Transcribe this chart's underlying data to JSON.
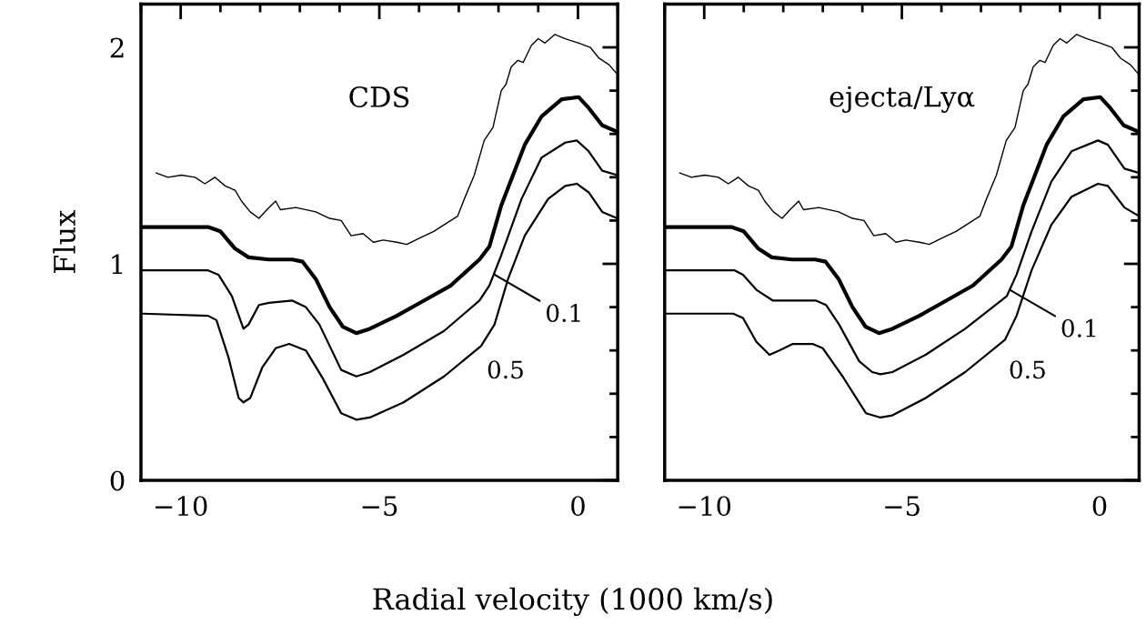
{
  "chart_data": [
    {
      "type": "line",
      "title": "CDS",
      "xlabel": "Radial velocity (1000 km/s)",
      "ylabel": "Flux",
      "xlim": [
        -11,
        1
      ],
      "xticks": [
        -10,
        -5,
        0
      ],
      "ylim": [
        0,
        2.2
      ],
      "yticks": [
        0,
        1,
        2
      ],
      "grid": false,
      "series": [
        {
          "color": "#000000",
          "x": [
            -10.62,
            -10.32,
            -9.98,
            -9.64,
            -9.39,
            -9.14,
            -8.88,
            -8.63,
            -8.47,
            -8.25,
            -8.03,
            -7.83,
            -7.61,
            -7.49,
            -7.1,
            -6.6,
            -6.25,
            -5.96,
            -5.71,
            -5.41,
            -5.15,
            -4.9,
            -4.56,
            -4.31,
            -3.97,
            -3.63,
            -3.29,
            -3.03,
            -2.86,
            -2.61,
            -2.36,
            -2.14,
            -1.93,
            -1.81,
            -1.68,
            -1.51,
            -1.38,
            -1.17,
            -1.0,
            -0.83,
            -0.58,
            -0.32,
            0.02,
            0.31,
            0.53,
            0.78,
            0.97
          ],
          "values": [
            1.42,
            1.4,
            1.41,
            1.4,
            1.37,
            1.4,
            1.36,
            1.34,
            1.29,
            1.24,
            1.21,
            1.25,
            1.29,
            1.25,
            1.26,
            1.24,
            1.21,
            1.2,
            1.13,
            1.14,
            1.1,
            1.11,
            1.1,
            1.09,
            1.12,
            1.15,
            1.19,
            1.22,
            1.3,
            1.41,
            1.57,
            1.63,
            1.8,
            1.83,
            1.91,
            1.94,
            1.93,
            2.01,
            2.04,
            2.02,
            2.06,
            2.04,
            2.02,
            2.0,
            1.95,
            1.92,
            1.88
          ]
        },
        {
          "color": "#000000",
          "x": [
            -10.96,
            -9.31,
            -9.0,
            -8.63,
            -8.29,
            -7.78,
            -7.19,
            -6.93,
            -6.6,
            -6.25,
            -5.92,
            -5.58,
            -5.24,
            -4.56,
            -3.88,
            -3.2,
            -2.48,
            -2.23,
            -1.93,
            -1.34,
            -0.92,
            -0.41,
            0.02,
            0.27,
            0.61,
            0.99
          ],
          "values": [
            1.17,
            1.17,
            1.15,
            1.07,
            1.03,
            1.02,
            1.02,
            1.01,
            0.93,
            0.8,
            0.71,
            0.68,
            0.7,
            0.76,
            0.83,
            0.9,
            1.02,
            1.08,
            1.27,
            1.55,
            1.68,
            1.76,
            1.77,
            1.72,
            1.64,
            1.61
          ]
        },
        {
          "color": "#000000",
          "x": [
            -10.96,
            -9.31,
            -9.05,
            -8.71,
            -8.42,
            -8.29,
            -8.03,
            -7.78,
            -7.19,
            -6.85,
            -6.51,
            -5.96,
            -5.58,
            -5.24,
            -4.39,
            -3.37,
            -2.48,
            -2.23,
            -1.93,
            -1.42,
            -0.92,
            -0.32,
            -0.03,
            0.27,
            0.61,
            0.99
          ],
          "values": [
            0.97,
            0.97,
            0.95,
            0.85,
            0.7,
            0.72,
            0.81,
            0.82,
            0.83,
            0.8,
            0.72,
            0.51,
            0.48,
            0.5,
            0.58,
            0.69,
            0.83,
            0.9,
            1.04,
            1.3,
            1.49,
            1.56,
            1.57,
            1.52,
            1.43,
            1.41
          ]
        },
        {
          "color": "#000000",
          "x": [
            -10.96,
            -9.31,
            -9.1,
            -8.8,
            -8.54,
            -8.42,
            -8.25,
            -7.95,
            -7.61,
            -7.27,
            -6.85,
            -6.42,
            -5.96,
            -5.58,
            -5.24,
            -4.39,
            -3.37,
            -2.44,
            -2.1,
            -1.76,
            -1.34,
            -0.75,
            -0.32,
            -0.03,
            0.27,
            0.61,
            0.99
          ],
          "values": [
            0.77,
            0.76,
            0.74,
            0.57,
            0.38,
            0.36,
            0.38,
            0.52,
            0.61,
            0.63,
            0.6,
            0.47,
            0.31,
            0.28,
            0.29,
            0.36,
            0.48,
            0.62,
            0.72,
            0.93,
            1.13,
            1.3,
            1.36,
            1.37,
            1.33,
            1.24,
            1.21
          ]
        }
      ],
      "annotations": [
        {
          "text": "0.1",
          "x": -2.1,
          "y": 0.95
        },
        "0.5"
      ]
    },
    {
      "type": "line",
      "title": "ejecta/Lyα",
      "xlim": [
        -11,
        1
      ],
      "xticks": [
        -10,
        -5,
        0
      ],
      "ylim": [
        0,
        2.2
      ],
      "yticks": [
        0,
        1,
        2
      ],
      "tick_labels": "x",
      "grid": false,
      "series": [
        {
          "color": "#000000",
          "x": [
            -10.62,
            -10.32,
            -9.98,
            -9.64,
            -9.39,
            -9.14,
            -8.88,
            -8.63,
            -8.47,
            -8.25,
            -8.03,
            -7.83,
            -7.61,
            -7.49,
            -7.1,
            -6.6,
            -6.25,
            -5.96,
            -5.71,
            -5.41,
            -5.15,
            -4.9,
            -4.56,
            -4.31,
            -3.97,
            -3.63,
            -3.29,
            -3.03,
            -2.86,
            -2.61,
            -2.36,
            -2.14,
            -1.93,
            -1.81,
            -1.68,
            -1.51,
            -1.38,
            -1.17,
            -1.0,
            -0.83,
            -0.58,
            -0.32,
            0.02,
            0.31,
            0.53,
            0.78,
            0.97
          ],
          "values": [
            1.42,
            1.4,
            1.41,
            1.4,
            1.37,
            1.4,
            1.36,
            1.34,
            1.29,
            1.24,
            1.21,
            1.25,
            1.29,
            1.25,
            1.26,
            1.24,
            1.21,
            1.2,
            1.13,
            1.14,
            1.1,
            1.11,
            1.1,
            1.09,
            1.12,
            1.15,
            1.19,
            1.22,
            1.3,
            1.41,
            1.57,
            1.63,
            1.8,
            1.83,
            1.91,
            1.94,
            1.93,
            2.01,
            2.04,
            2.02,
            2.06,
            2.04,
            2.02,
            2.0,
            1.95,
            1.92,
            1.88
          ]
        },
        {
          "color": "#000000",
          "x": [
            -10.96,
            -9.31,
            -9.0,
            -8.63,
            -8.29,
            -7.78,
            -7.19,
            -6.93,
            -6.6,
            -6.25,
            -5.92,
            -5.58,
            -5.24,
            -4.56,
            -3.88,
            -3.2,
            -2.48,
            -2.23,
            -1.93,
            -1.34,
            -0.92,
            -0.41,
            0.02,
            0.27,
            0.61,
            0.99
          ],
          "values": [
            1.17,
            1.17,
            1.15,
            1.07,
            1.03,
            1.02,
            1.02,
            1.01,
            0.93,
            0.8,
            0.71,
            0.68,
            0.7,
            0.76,
            0.83,
            0.9,
            1.02,
            1.08,
            1.27,
            1.55,
            1.68,
            1.76,
            1.77,
            1.72,
            1.64,
            1.61
          ]
        },
        {
          "color": "#000000",
          "x": [
            -10.99,
            -9.23,
            -9.02,
            -8.68,
            -8.26,
            -7.76,
            -7.17,
            -6.92,
            -6.59,
            -6.08,
            -5.75,
            -5.54,
            -5.24,
            -4.4,
            -3.4,
            -2.35,
            -2.1,
            -1.72,
            -1.22,
            -0.71,
            -0.04,
            0.21,
            0.63,
            1.0
          ],
          "values": [
            0.97,
            0.97,
            0.95,
            0.88,
            0.83,
            0.83,
            0.83,
            0.81,
            0.72,
            0.55,
            0.5,
            0.49,
            0.5,
            0.58,
            0.7,
            0.85,
            0.95,
            1.15,
            1.38,
            1.52,
            1.57,
            1.55,
            1.44,
            1.42
          ]
        },
        {
          "color": "#000000",
          "x": [
            -10.99,
            -9.27,
            -9.02,
            -8.68,
            -8.35,
            -8.1,
            -7.76,
            -7.26,
            -7.0,
            -6.5,
            -5.91,
            -5.54,
            -5.24,
            -4.4,
            -3.4,
            -2.39,
            -2.1,
            -1.72,
            -1.22,
            -0.71,
            -0.04,
            0.21,
            0.63,
            1.0
          ],
          "values": [
            0.77,
            0.77,
            0.75,
            0.64,
            0.58,
            0.6,
            0.63,
            0.63,
            0.61,
            0.48,
            0.31,
            0.29,
            0.3,
            0.38,
            0.5,
            0.65,
            0.76,
            0.97,
            1.18,
            1.31,
            1.37,
            1.36,
            1.26,
            1.22
          ]
        }
      ],
      "annotations": [
        {
          "text": "0.1",
          "x": -2.27,
          "y": 0.88
        },
        "0.5"
      ]
    }
  ]
}
